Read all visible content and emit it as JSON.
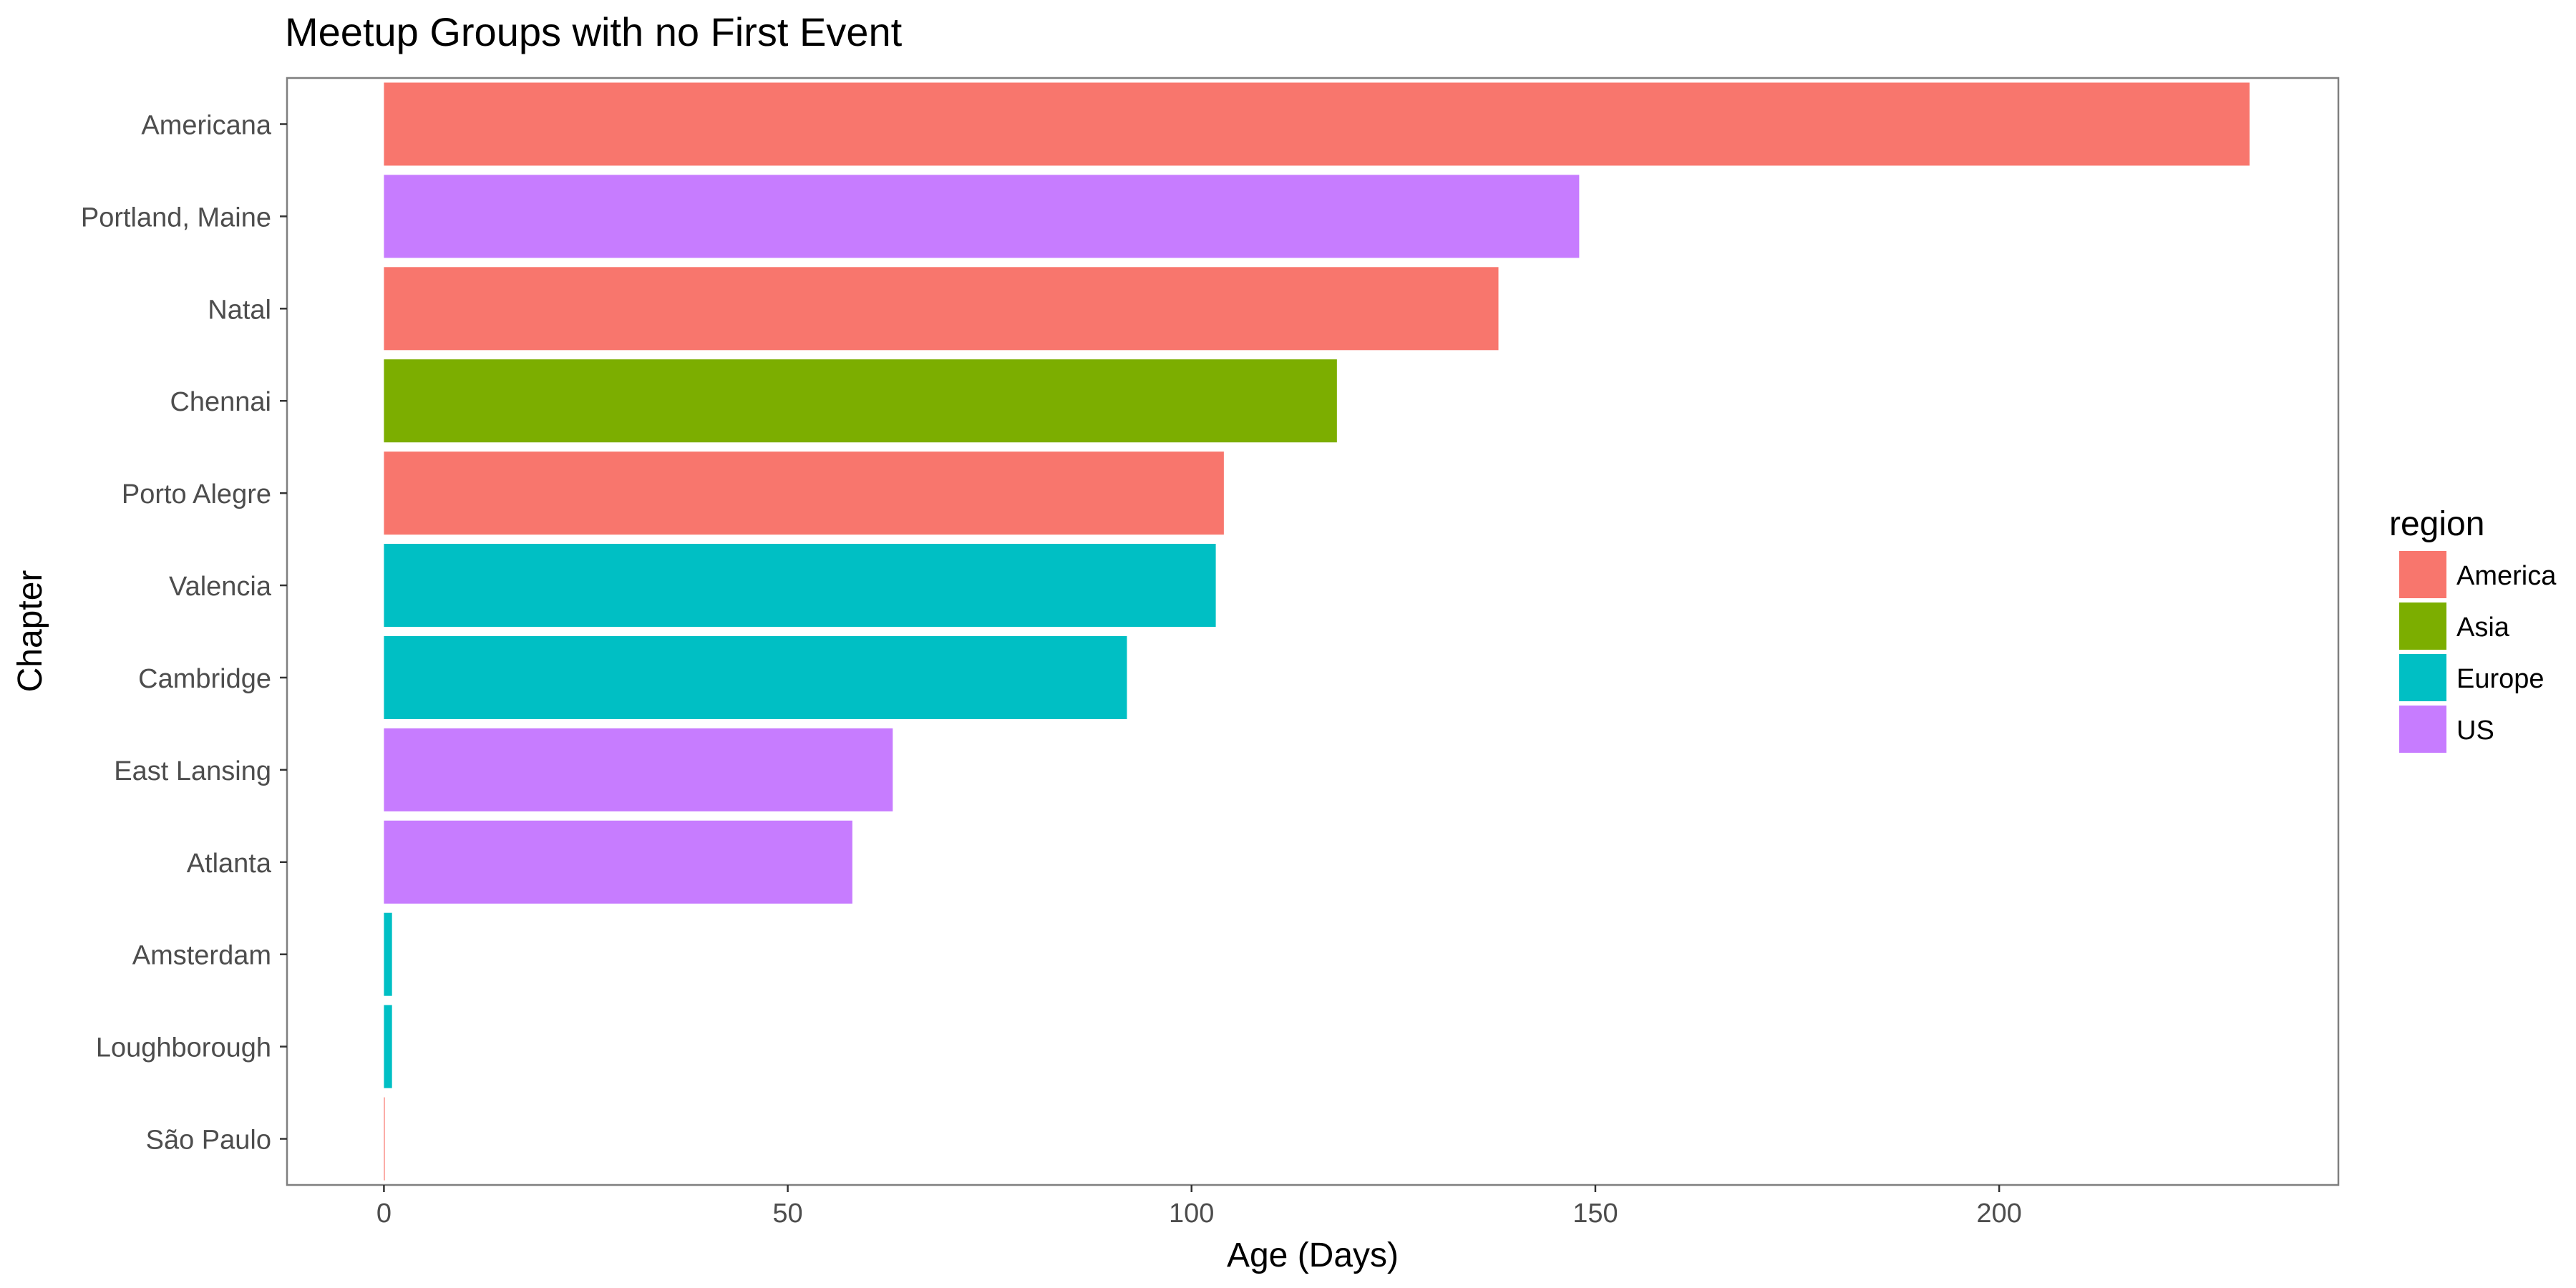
{
  "chart_data": {
    "type": "bar",
    "orientation": "horizontal",
    "title": "Meetup Groups with no First Event",
    "xlabel": "Age (Days)",
    "ylabel": "Chapter",
    "xlim": [
      -12,
      242
    ],
    "xticks": [
      0,
      50,
      100,
      150,
      200
    ],
    "grid": false,
    "legend": {
      "title": "region",
      "position": "right",
      "entries": [
        {
          "name": "America",
          "color": "#F8766D"
        },
        {
          "name": "Asia",
          "color": "#7CAE00"
        },
        {
          "name": "Europe",
          "color": "#00BFC4"
        },
        {
          "name": "US",
          "color": "#C77CFF"
        }
      ]
    },
    "categories": [
      "Americana",
      "Portland, Maine",
      "Natal",
      "Chennai",
      "Porto Alegre",
      "Valencia",
      "Cambridge",
      "East Lansing",
      "Atlanta",
      "Amsterdam",
      "Loughborough",
      "São Paulo"
    ],
    "values": [
      231,
      148,
      138,
      118,
      104,
      103,
      92,
      63,
      58,
      1,
      1,
      0
    ],
    "regions": [
      "America",
      "US",
      "America",
      "Asia",
      "America",
      "Europe",
      "Europe",
      "US",
      "US",
      "Europe",
      "Europe",
      "America"
    ]
  }
}
